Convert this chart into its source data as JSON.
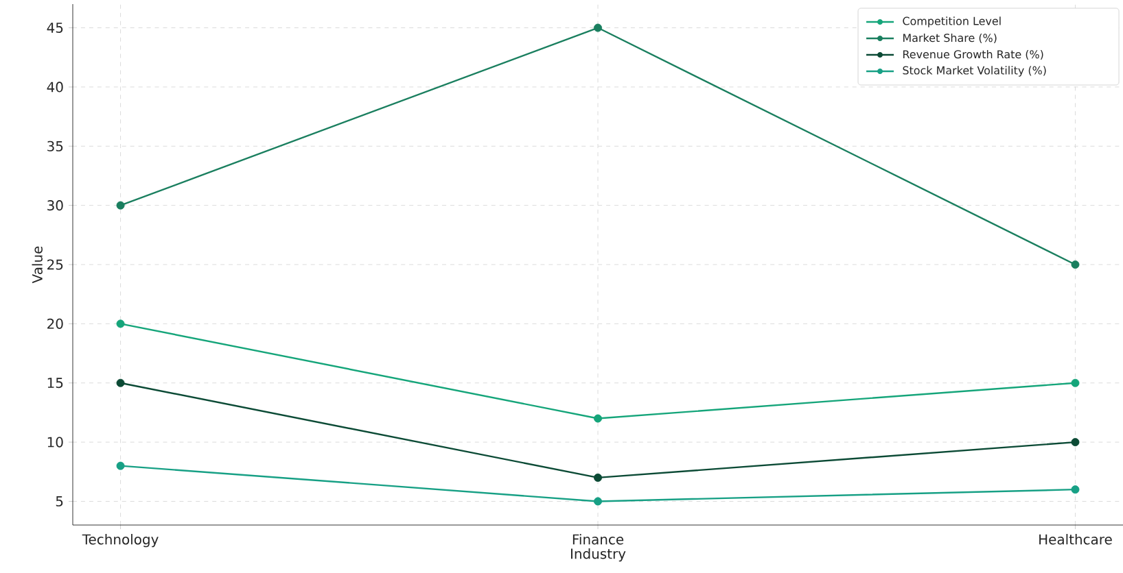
{
  "chart_data": {
    "type": "line",
    "xlabel": "Industry",
    "ylabel": "Value",
    "categories": [
      "Technology",
      "Finance",
      "Healthcare"
    ],
    "series": [
      {
        "name": "Competition Level",
        "color": "#15a57a",
        "values": [
          20,
          12,
          15
        ]
      },
      {
        "name": "Market Share (%)",
        "color": "#1a7f5f",
        "values": [
          30,
          45,
          25
        ]
      },
      {
        "name": "Revenue Growth Rate (%)",
        "color": "#0b4a35",
        "values": [
          15,
          7,
          10
        ]
      },
      {
        "name": "Stock Market Volatility (%)",
        "color": "#17a085",
        "values": [
          8,
          5,
          6
        ]
      }
    ],
    "ylim": [
      3,
      47
    ],
    "yticks": [
      5,
      10,
      15,
      20,
      25,
      30,
      35,
      40,
      45
    ],
    "grid": true,
    "legend": "top right",
    "marker": "circle",
    "line_style": "solid"
  }
}
